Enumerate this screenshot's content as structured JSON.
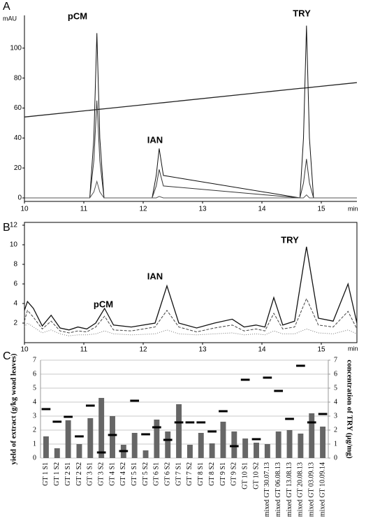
{
  "chart_data": [
    {
      "type": "line",
      "panel_label": "A",
      "y_unit": "mAU",
      "x_unit": "min",
      "annotations": [
        "pCM",
        "IAN",
        "TRY"
      ],
      "x": [
        10,
        11.1,
        11.17,
        11.22,
        11.27,
        11.34,
        12.15,
        12.22,
        12.27,
        12.34,
        14.64,
        14.7,
        14.75,
        14.8,
        14.87,
        15.6
      ],
      "series": [
        {
          "color": "#222",
          "values": [
            54,
            58.5,
            58.8,
            59.0,
            59.2,
            59.5,
            62.8,
            63.1,
            63.3,
            63.6,
            73.1,
            73.3,
            73.5,
            73.7,
            74.0,
            77
          ]
        },
        {
          "color": "#111",
          "values": [
            0,
            0,
            40,
            110,
            40,
            0,
            0,
            15,
            33,
            15,
            0,
            40,
            115,
            40,
            0,
            0
          ]
        },
        {
          "color": "#333",
          "values": [
            0,
            0,
            25,
            65,
            25,
            0,
            0,
            8,
            19,
            8,
            0,
            10,
            26,
            10,
            0,
            0
          ]
        },
        {
          "color": "#555",
          "values": [
            0,
            0,
            4,
            11,
            4,
            0,
            0,
            0,
            1,
            0,
            0,
            0,
            2,
            0,
            0,
            0
          ]
        }
      ],
      "xlim": [
        10,
        15.6
      ],
      "xticks": [
        10,
        11,
        12,
        13,
        14,
        15
      ],
      "ylim": [
        0,
        120
      ],
      "yticks": [
        0,
        20,
        40,
        60,
        80,
        100
      ]
    },
    {
      "type": "line",
      "panel_label": "B",
      "x_unit": "min",
      "annotations": [
        "pCM",
        "IAN",
        "TRY"
      ],
      "x": [
        10,
        10.05,
        10.15,
        10.3,
        10.45,
        10.6,
        10.75,
        10.9,
        11.05,
        11.2,
        11.35,
        11.5,
        11.8,
        12.2,
        12.4,
        12.6,
        12.9,
        13.2,
        13.5,
        13.7,
        13.9,
        14.05,
        14.2,
        14.35,
        14.55,
        14.75,
        14.95,
        15.2,
        15.45,
        15.6
      ],
      "series": [
        {
          "color": "#111",
          "values": [
            3.3,
            4.2,
            3.5,
            1.7,
            2.8,
            1.5,
            1.3,
            1.6,
            1.4,
            2.0,
            3.5,
            1.8,
            1.6,
            2.0,
            5.8,
            2.0,
            1.5,
            2.0,
            2.4,
            1.6,
            1.8,
            1.6,
            4.6,
            1.8,
            2.2,
            9.8,
            2.5,
            2.2,
            6.0,
            2.0
          ]
        },
        {
          "color": "#444",
          "values": [
            2.2,
            3.3,
            2.6,
            1.4,
            2.2,
            1.2,
            1.0,
            1.2,
            1.1,
            1.6,
            2.7,
            1.3,
            1.2,
            1.6,
            3.3,
            1.6,
            1.1,
            1.5,
            1.8,
            1.2,
            1.4,
            1.2,
            3.0,
            1.4,
            1.6,
            4.5,
            1.8,
            1.6,
            3.2,
            1.4
          ]
        },
        {
          "color": "#777",
          "values": [
            1.6,
            2.0,
            1.6,
            1.0,
            1.3,
            0.9,
            0.7,
            0.8,
            0.8,
            0.9,
            1.2,
            0.9,
            0.8,
            0.9,
            1.3,
            0.9,
            0.8,
            0.9,
            1.0,
            0.8,
            0.9,
            0.8,
            1.2,
            0.9,
            0.9,
            1.4,
            1.0,
            0.9,
            1.3,
            0.9
          ]
        }
      ],
      "xlim": [
        10,
        15.6
      ],
      "xticks": [
        10,
        11,
        12,
        13,
        14,
        15
      ],
      "ylim": [
        0,
        12
      ],
      "yticks": [
        2,
        4,
        6,
        8,
        10,
        12
      ]
    },
    {
      "type": "bar",
      "panel_label": "C",
      "y_label": "yield of extract (g/kg woad leaves)",
      "y2_label": "concentration of TRY (µg/mg)",
      "categories": [
        "GT 1 S1",
        "GT 1 S2",
        "GT 2 S1",
        "GT 2 S2",
        "GT 3 S1",
        "GT 3 S2",
        "GT 4 S1",
        "GT 4 S2",
        "GT 5 S1",
        "GT 5 S2",
        "GT 6 S1",
        "GT 6 S2",
        "GT 7 S1",
        "GT 7 S2",
        "GT 8 S1",
        "GT 8 S2",
        "GT 9 S1",
        "GT 9 S2",
        "GT 10 S1",
        "GT 10 S2",
        "mixed GT 30.07.13",
        "mixed GT 06.08.13",
        "mixed GT 13.08.13",
        "mixed GT 20.08.13",
        "mixed GT 03.09.13",
        "mixed GT 10.09.14"
      ],
      "series": [
        {
          "type": "bar",
          "color": "#666666",
          "values": [
            1.55,
            0.7,
            2.7,
            1.0,
            2.85,
            4.3,
            3.0,
            0.95,
            1.8,
            0.55,
            2.75,
            1.9,
            3.85,
            0.95,
            1.8,
            1.05,
            2.6,
            1.9,
            1.4,
            1.1,
            1.0,
            1.9,
            2.0,
            1.75,
            3.2,
            2.25
          ]
        },
        {
          "type": "marker",
          "axis": "y2",
          "color": "#000000",
          "values": [
            3.5,
            2.6,
            2.95,
            1.55,
            3.75,
            0.4,
            1.65,
            0.5,
            4.1,
            1.7,
            2.2,
            1.3,
            2.55,
            2.55,
            2.55,
            1.9,
            3.35,
            0.85,
            5.6,
            1.35,
            5.75,
            4.8,
            2.8,
            6.6,
            2.55,
            3.15
          ]
        }
      ],
      "ylim": [
        0,
        7
      ],
      "yticks": [
        0,
        1,
        2,
        3,
        4,
        5,
        6,
        7
      ],
      "y2lim": [
        0,
        7
      ],
      "y2ticks": [
        0,
        1,
        2,
        3,
        4,
        5,
        6,
        7
      ],
      "grid": true
    }
  ]
}
